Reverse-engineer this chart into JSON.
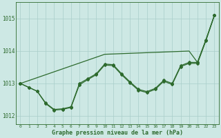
{
  "xlabel": "Graphe pression niveau de la mer (hPa)",
  "xlim": [
    -0.5,
    23.5
  ],
  "ylim": [
    1011.75,
    1015.5
  ],
  "yticks": [
    1012,
    1013,
    1014,
    1015
  ],
  "xticks": [
    0,
    1,
    2,
    3,
    4,
    5,
    6,
    7,
    8,
    9,
    10,
    11,
    12,
    13,
    14,
    15,
    16,
    17,
    18,
    19,
    20,
    21,
    22,
    23
  ],
  "background_color": "#cde8e4",
  "grid_color": "#a8cec9",
  "line_color": "#2d6a2d",
  "line_straight": [
    1013.0,
    1013.09,
    1013.18,
    1013.27,
    1013.36,
    1013.45,
    1013.54,
    1013.63,
    1013.72,
    1013.81,
    1013.9,
    1013.91,
    1013.92,
    1013.93,
    1013.94,
    1013.95,
    1013.96,
    1013.97,
    1013.98,
    1013.99,
    1014.0,
    1013.65,
    1014.35,
    1015.1
  ],
  "line_curve1": [
    1013.0,
    1012.88,
    1012.76,
    1012.4,
    1012.2,
    1012.22,
    1012.28,
    1013.0,
    1013.15,
    1013.3,
    1013.6,
    1013.58,
    1013.3,
    1013.05,
    1012.82,
    1012.75,
    1012.85,
    1013.1,
    1013.0,
    1013.55,
    1013.65,
    1013.65,
    1014.35,
    1015.1
  ],
  "line_curve2": [
    1013.0,
    1012.88,
    1012.76,
    1012.38,
    1012.18,
    1012.2,
    1012.26,
    1012.96,
    1013.12,
    1013.27,
    1013.57,
    1013.55,
    1013.27,
    1013.02,
    1012.79,
    1012.72,
    1012.82,
    1013.07,
    1012.97,
    1013.52,
    1013.62,
    1013.62,
    1014.32,
    1015.1
  ]
}
